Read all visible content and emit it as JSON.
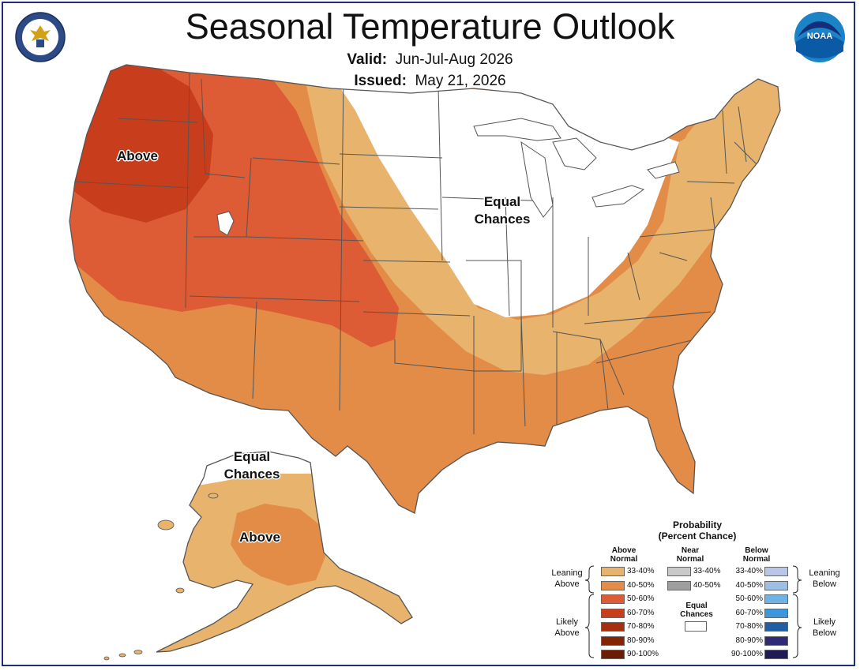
{
  "title": "Seasonal Temperature Outlook",
  "valid_label": "Valid:",
  "valid_value": "Jun-Jul-Aug 2026",
  "issued_label": "Issued:",
  "issued_value": "May 21, 2026",
  "map_labels": {
    "above_conus": "Above",
    "ec_conus_1": "Equal",
    "ec_conus_2": "Chances",
    "ec_ak_1": "Equal",
    "ec_ak_2": "Chances",
    "above_ak": "Above"
  },
  "logos": {
    "left": "seal-icon",
    "right": "noaa-logo-icon",
    "noaa_text": "NOAA"
  },
  "legend": {
    "title_1": "Probability",
    "title_2": "(Percent Chance)",
    "above_head_1": "Above",
    "above_head_2": "Normal",
    "near_head_1": "Near",
    "near_head_2": "Normal",
    "below_head_1": "Below",
    "below_head_2": "Normal",
    "leaning_above_1": "Leaning",
    "leaning_above_2": "Above",
    "likely_above_1": "Likely",
    "likely_above_2": "Above",
    "leaning_below_1": "Leaning",
    "leaning_below_2": "Below",
    "likely_below_1": "Likely",
    "likely_below_2": "Below",
    "ec_1": "Equal",
    "ec_2": "Chances",
    "above": [
      {
        "range": "33-40%",
        "color": "#e8b36c"
      },
      {
        "range": "40-50%",
        "color": "#e38c47"
      },
      {
        "range": "50-60%",
        "color": "#dd5b35"
      },
      {
        "range": "60-70%",
        "color": "#c83d1c"
      },
      {
        "range": "70-80%",
        "color": "#a82f0e"
      },
      {
        "range": "80-90%",
        "color": "#852405"
      },
      {
        "range": "90-100%",
        "color": "#6a1d03"
      }
    ],
    "near": [
      {
        "range": "33-40%",
        "color": "#c9c9c9"
      },
      {
        "range": "40-50%",
        "color": "#9e9e9e"
      }
    ],
    "below": [
      {
        "range": "33-40%",
        "color": "#b9c6e8"
      },
      {
        "range": "40-50%",
        "color": "#9fbee6"
      },
      {
        "range": "50-60%",
        "color": "#6fb2e6"
      },
      {
        "range": "60-70%",
        "color": "#3d97dc"
      },
      {
        "range": "70-80%",
        "color": "#1f5fa6"
      },
      {
        "range": "80-90%",
        "color": "#2d2a78"
      },
      {
        "range": "90-100%",
        "color": "#201a55"
      }
    ]
  }
}
